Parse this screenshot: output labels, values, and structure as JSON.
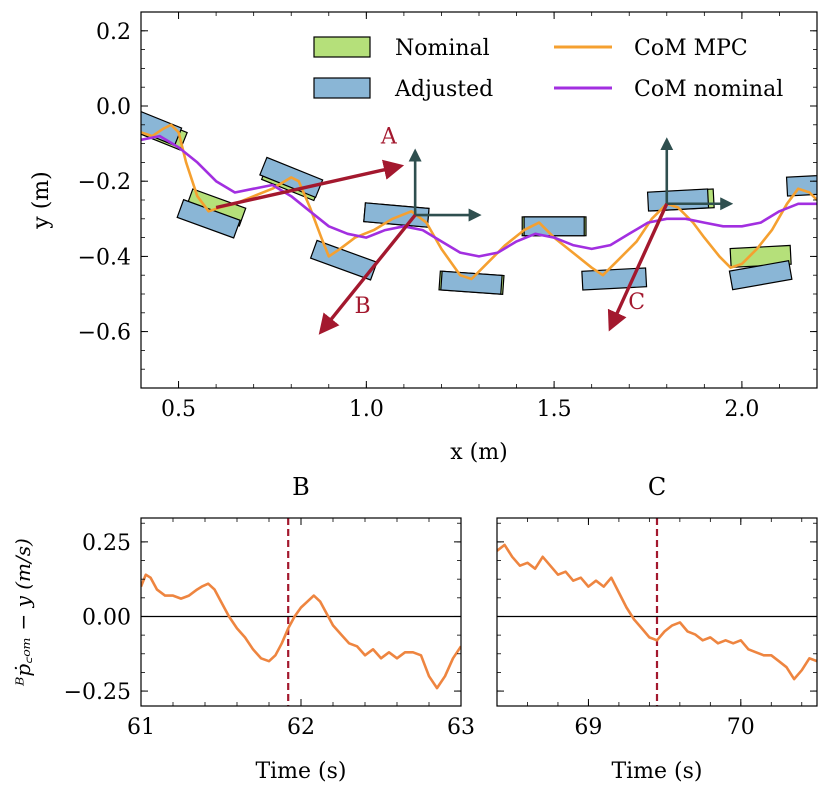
{
  "chart_data": [
    {
      "type": "line",
      "id": "top",
      "xlabel": "x (m)",
      "ylabel": "y (m)",
      "xlim": [
        0.4,
        2.2
      ],
      "ylim": [
        -0.75,
        0.25
      ],
      "xticks": [
        0.5,
        1.0,
        1.5,
        2.0
      ],
      "xtick_labels": [
        "0.5",
        "1.0",
        "1.5",
        "2.0"
      ],
      "yticks": [
        0.2,
        0.0,
        -0.2,
        -0.4,
        -0.6
      ],
      "ytick_labels": [
        "0.2",
        "0.0",
        "−0.2",
        "−0.4",
        "−0.6"
      ],
      "legend": {
        "placement": "top-right",
        "entries": [
          {
            "label": "Nominal",
            "kind": "patch",
            "color": "#b5e07a"
          },
          {
            "label": "CoM MPC",
            "kind": "line",
            "color": "#f5a030"
          },
          {
            "label": "Adjusted",
            "kind": "patch",
            "color": "#8ab6d6"
          },
          {
            "label": "CoM nominal",
            "kind": "line",
            "color": "#a22fe0"
          }
        ]
      },
      "series": [
        {
          "name": "CoM MPC",
          "color": "#f5a030",
          "points": [
            [
              0.4,
              -0.07
            ],
            [
              0.43,
              -0.08
            ],
            [
              0.46,
              -0.06
            ],
            [
              0.48,
              -0.05
            ],
            [
              0.5,
              -0.07
            ],
            [
              0.52,
              -0.15
            ],
            [
              0.55,
              -0.24
            ],
            [
              0.58,
              -0.28
            ],
            [
              0.61,
              -0.27
            ],
            [
              0.65,
              -0.26
            ],
            [
              0.7,
              -0.24
            ],
            [
              0.75,
              -0.22
            ],
            [
              0.8,
              -0.19
            ],
            [
              0.82,
              -0.2
            ],
            [
              0.85,
              -0.27
            ],
            [
              0.88,
              -0.35
            ],
            [
              0.9,
              -0.4
            ],
            [
              0.93,
              -0.38
            ],
            [
              0.97,
              -0.35
            ],
            [
              1.02,
              -0.33
            ],
            [
              1.07,
              -0.3
            ],
            [
              1.12,
              -0.28
            ],
            [
              1.16,
              -0.31
            ],
            [
              1.2,
              -0.38
            ],
            [
              1.25,
              -0.45
            ],
            [
              1.28,
              -0.46
            ],
            [
              1.32,
              -0.42
            ],
            [
              1.37,
              -0.37
            ],
            [
              1.42,
              -0.33
            ],
            [
              1.46,
              -0.31
            ],
            [
              1.5,
              -0.35
            ],
            [
              1.55,
              -0.39
            ],
            [
              1.6,
              -0.43
            ],
            [
              1.63,
              -0.45
            ],
            [
              1.67,
              -0.41
            ],
            [
              1.72,
              -0.36
            ],
            [
              1.76,
              -0.3
            ],
            [
              1.8,
              -0.26
            ],
            [
              1.83,
              -0.27
            ],
            [
              1.87,
              -0.31
            ],
            [
              1.9,
              -0.35
            ],
            [
              1.94,
              -0.4
            ],
            [
              1.97,
              -0.43
            ],
            [
              2.0,
              -0.42
            ],
            [
              2.04,
              -0.38
            ],
            [
              2.08,
              -0.33
            ],
            [
              2.12,
              -0.26
            ],
            [
              2.15,
              -0.22
            ],
            [
              2.18,
              -0.23
            ],
            [
              2.2,
              -0.25
            ]
          ]
        },
        {
          "name": "CoM nominal",
          "color": "#a22fe0",
          "points": [
            [
              0.4,
              -0.09
            ],
            [
              0.45,
              -0.08
            ],
            [
              0.5,
              -0.11
            ],
            [
              0.55,
              -0.15
            ],
            [
              0.6,
              -0.2
            ],
            [
              0.65,
              -0.23
            ],
            [
              0.7,
              -0.22
            ],
            [
              0.75,
              -0.21
            ],
            [
              0.8,
              -0.24
            ],
            [
              0.85,
              -0.28
            ],
            [
              0.9,
              -0.32
            ],
            [
              0.95,
              -0.34
            ],
            [
              1.0,
              -0.35
            ],
            [
              1.05,
              -0.33
            ],
            [
              1.1,
              -0.32
            ],
            [
              1.15,
              -0.33
            ],
            [
              1.2,
              -0.36
            ],
            [
              1.25,
              -0.39
            ],
            [
              1.3,
              -0.4
            ],
            [
              1.35,
              -0.39
            ],
            [
              1.4,
              -0.36
            ],
            [
              1.45,
              -0.34
            ],
            [
              1.5,
              -0.35
            ],
            [
              1.55,
              -0.37
            ],
            [
              1.6,
              -0.38
            ],
            [
              1.65,
              -0.37
            ],
            [
              1.7,
              -0.34
            ],
            [
              1.75,
              -0.31
            ],
            [
              1.8,
              -0.3
            ],
            [
              1.85,
              -0.3
            ],
            [
              1.9,
              -0.31
            ],
            [
              1.95,
              -0.32
            ],
            [
              2.0,
              -0.32
            ],
            [
              2.05,
              -0.31
            ],
            [
              2.1,
              -0.28
            ],
            [
              2.15,
              -0.26
            ],
            [
              2.2,
              -0.26
            ]
          ]
        }
      ],
      "footholds": [
        {
          "kind": "Nominal",
          "cx": 0.43,
          "cy": -0.06,
          "w": 0.18,
          "h": 0.05,
          "angle": -22
        },
        {
          "kind": "Adjusted",
          "cx": 0.42,
          "cy": -0.05,
          "w": 0.17,
          "h": 0.05,
          "angle": -22
        },
        {
          "kind": "Nominal",
          "cx": 0.6,
          "cy": -0.27,
          "w": 0.15,
          "h": 0.05,
          "angle": -20
        },
        {
          "kind": "Adjusted",
          "cx": 0.58,
          "cy": -0.3,
          "w": 0.16,
          "h": 0.05,
          "angle": -20
        },
        {
          "kind": "Nominal",
          "cx": 0.8,
          "cy": -0.2,
          "w": 0.15,
          "h": 0.05,
          "angle": -22
        },
        {
          "kind": "Adjusted",
          "cx": 0.8,
          "cy": -0.19,
          "w": 0.16,
          "h": 0.05,
          "angle": -22
        },
        {
          "kind": "Adjusted",
          "cx": 0.94,
          "cy": -0.41,
          "w": 0.17,
          "h": 0.05,
          "angle": -20
        },
        {
          "kind": "Nominal",
          "cx": 1.08,
          "cy": -0.29,
          "w": 0.17,
          "h": 0.05,
          "angle": -5
        },
        {
          "kind": "Adjusted",
          "cx": 1.08,
          "cy": -0.29,
          "w": 0.17,
          "h": 0.05,
          "angle": -5
        },
        {
          "kind": "Nominal",
          "cx": 1.28,
          "cy": -0.47,
          "w": 0.17,
          "h": 0.05,
          "angle": -4
        },
        {
          "kind": "Adjusted",
          "cx": 1.28,
          "cy": -0.47,
          "w": 0.16,
          "h": 0.05,
          "angle": -4
        },
        {
          "kind": "Nominal",
          "cx": 1.5,
          "cy": -0.32,
          "w": 0.17,
          "h": 0.05,
          "angle": 0
        },
        {
          "kind": "Adjusted",
          "cx": 1.5,
          "cy": -0.32,
          "w": 0.16,
          "h": 0.05,
          "angle": 0
        },
        {
          "kind": "Adjusted",
          "cx": 1.66,
          "cy": -0.46,
          "w": 0.17,
          "h": 0.05,
          "angle": 3
        },
        {
          "kind": "Nominal",
          "cx": 1.84,
          "cy": -0.25,
          "w": 0.17,
          "h": 0.05,
          "angle": 3
        },
        {
          "kind": "Adjusted",
          "cx": 1.83,
          "cy": -0.25,
          "w": 0.16,
          "h": 0.05,
          "angle": 3
        },
        {
          "kind": "Nominal",
          "cx": 2.05,
          "cy": -0.4,
          "w": 0.16,
          "h": 0.05,
          "angle": 3
        },
        {
          "kind": "Adjusted",
          "cx": 2.05,
          "cy": -0.45,
          "w": 0.16,
          "h": 0.05,
          "angle": 10
        },
        {
          "kind": "Adjusted",
          "cx": 2.2,
          "cy": -0.21,
          "w": 0.16,
          "h": 0.05,
          "angle": 3
        }
      ],
      "axes_arrows": [
        {
          "ox": 1.13,
          "oy": -0.29,
          "dx": 0.0,
          "dy": 0.17
        },
        {
          "ox": 1.13,
          "oy": -0.29,
          "dx": 0.17,
          "dy": 0.0
        },
        {
          "ox": 1.8,
          "oy": -0.26,
          "dx": 0.0,
          "dy": 0.17
        },
        {
          "ox": 1.8,
          "oy": -0.26,
          "dx": 0.17,
          "dy": 0.0
        }
      ],
      "push_arrows": [
        {
          "label": "A",
          "ox": 0.6,
          "oy": -0.27,
          "tx": 1.09,
          "ty": -0.16,
          "lx": 1.06,
          "ly": -0.1,
          "color": "#a3182e"
        },
        {
          "label": "B",
          "ox": 1.13,
          "oy": -0.29,
          "tx": 0.88,
          "ty": -0.6,
          "lx": 0.99,
          "ly": -0.55,
          "color": "#a3182e"
        },
        {
          "label": "C",
          "ox": 1.8,
          "oy": -0.26,
          "tx": 1.65,
          "ty": -0.59,
          "lx": 1.72,
          "ly": -0.54,
          "color": "#a3182e"
        }
      ]
    },
    {
      "type": "line",
      "id": "B",
      "title": "B",
      "xlabel": "Time (s)",
      "ylabel": "ᴮṗ꜀ₒₘ − y (m/s)",
      "xlim": [
        61,
        63
      ],
      "ylim": [
        -0.3,
        0.33
      ],
      "xticks": [
        61,
        62,
        63
      ],
      "xtick_labels": [
        "61",
        "62",
        "63"
      ],
      "yticks": [
        0.25,
        0.0,
        -0.25
      ],
      "ytick_labels": [
        "0.25",
        "0.00",
        "−0.25"
      ],
      "event_time": 61.92,
      "series": [
        {
          "name": "",
          "color": "#ee8540",
          "points": [
            [
              61.0,
              0.1
            ],
            [
              61.03,
              0.14
            ],
            [
              61.06,
              0.13
            ],
            [
              61.1,
              0.09
            ],
            [
              61.15,
              0.07
            ],
            [
              61.2,
              0.07
            ],
            [
              61.25,
              0.06
            ],
            [
              61.3,
              0.07
            ],
            [
              61.35,
              0.09
            ],
            [
              61.38,
              0.1
            ],
            [
              61.42,
              0.11
            ],
            [
              61.46,
              0.09
            ],
            [
              61.5,
              0.05
            ],
            [
              61.55,
              0.0
            ],
            [
              61.6,
              -0.04
            ],
            [
              61.65,
              -0.07
            ],
            [
              61.7,
              -0.11
            ],
            [
              61.75,
              -0.14
            ],
            [
              61.8,
              -0.15
            ],
            [
              61.84,
              -0.13
            ],
            [
              61.88,
              -0.09
            ],
            [
              61.92,
              -0.04
            ],
            [
              61.96,
              0.0
            ],
            [
              62.0,
              0.03
            ],
            [
              62.04,
              0.05
            ],
            [
              62.08,
              0.07
            ],
            [
              62.12,
              0.05
            ],
            [
              62.16,
              0.01
            ],
            [
              62.2,
              -0.03
            ],
            [
              62.25,
              -0.06
            ],
            [
              62.3,
              -0.09
            ],
            [
              62.35,
              -0.1
            ],
            [
              62.4,
              -0.13
            ],
            [
              62.45,
              -0.11
            ],
            [
              62.5,
              -0.14
            ],
            [
              62.55,
              -0.12
            ],
            [
              62.6,
              -0.14
            ],
            [
              62.65,
              -0.12
            ],
            [
              62.7,
              -0.12
            ],
            [
              62.75,
              -0.13
            ],
            [
              62.8,
              -0.2
            ],
            [
              62.85,
              -0.24
            ],
            [
              62.9,
              -0.2
            ],
            [
              62.95,
              -0.14
            ],
            [
              63.0,
              -0.1
            ]
          ]
        }
      ]
    },
    {
      "type": "line",
      "id": "C",
      "title": "C",
      "xlabel": "Time (s)",
      "ylabel": "",
      "xlim": [
        68.4,
        70.5
      ],
      "ylim": [
        -0.3,
        0.33
      ],
      "xticks": [
        69,
        70
      ],
      "xtick_labels": [
        "69",
        "70"
      ],
      "yticks": [
        0.25,
        0.0,
        -0.25
      ],
      "ytick_labels": [],
      "event_time": 69.45,
      "series": [
        {
          "name": "",
          "color": "#ee8540",
          "points": [
            [
              68.4,
              0.22
            ],
            [
              68.45,
              0.24
            ],
            [
              68.5,
              0.2
            ],
            [
              68.55,
              0.17
            ],
            [
              68.6,
              0.18
            ],
            [
              68.65,
              0.16
            ],
            [
              68.7,
              0.2
            ],
            [
              68.75,
              0.17
            ],
            [
              68.8,
              0.14
            ],
            [
              68.85,
              0.15
            ],
            [
              68.9,
              0.12
            ],
            [
              68.95,
              0.13
            ],
            [
              69.0,
              0.1
            ],
            [
              69.05,
              0.12
            ],
            [
              69.1,
              0.1
            ],
            [
              69.15,
              0.13
            ],
            [
              69.2,
              0.08
            ],
            [
              69.25,
              0.03
            ],
            [
              69.3,
              -0.01
            ],
            [
              69.35,
              -0.04
            ],
            [
              69.4,
              -0.07
            ],
            [
              69.45,
              -0.08
            ],
            [
              69.5,
              -0.05
            ],
            [
              69.55,
              -0.03
            ],
            [
              69.6,
              -0.02
            ],
            [
              69.65,
              -0.05
            ],
            [
              69.7,
              -0.06
            ],
            [
              69.75,
              -0.08
            ],
            [
              69.8,
              -0.07
            ],
            [
              69.85,
              -0.09
            ],
            [
              69.9,
              -0.08
            ],
            [
              69.95,
              -0.09
            ],
            [
              70.0,
              -0.08
            ],
            [
              70.05,
              -0.11
            ],
            [
              70.1,
              -0.12
            ],
            [
              70.15,
              -0.13
            ],
            [
              70.2,
              -0.13
            ],
            [
              70.25,
              -0.15
            ],
            [
              70.3,
              -0.17
            ],
            [
              70.35,
              -0.21
            ],
            [
              70.4,
              -0.18
            ],
            [
              70.45,
              -0.14
            ],
            [
              70.5,
              -0.15
            ]
          ]
        }
      ]
    }
  ]
}
